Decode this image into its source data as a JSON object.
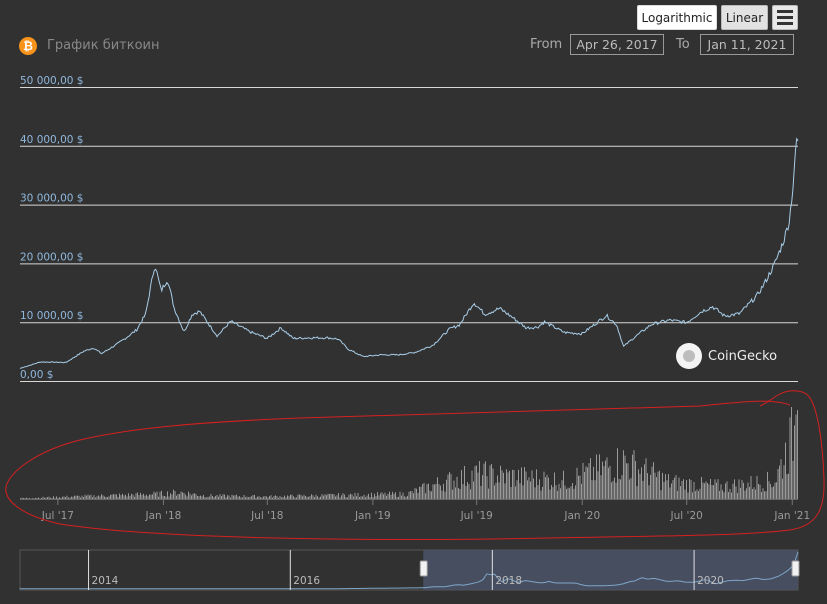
{
  "header": {
    "title": "График биткоин",
    "coin_symbol": "₿",
    "from_label": "From",
    "from_value": "Apr 26, 2017",
    "to_label": "To",
    "to_value": "Jan 11, 2021"
  },
  "buttons": {
    "logarithmic": "Logarithmic",
    "linear": "Linear"
  },
  "watermark": {
    "text": "CoinGecko",
    "icon": "coingecko-gecko-icon"
  },
  "colors": {
    "background": "#313131",
    "price_line": "#a8cde8",
    "volume_bars": "#9a9a9a",
    "annotation": "#d62020",
    "navigator_fill": "#4a5468"
  },
  "chart_data": [
    {
      "type": "line",
      "series": [
        {
          "x": [
            "2017-04-26",
            "2017-06-01",
            "2017-07-15",
            "2017-08-15",
            "2017-09-01",
            "2017-09-15",
            "2017-10-15",
            "2017-11-15",
            "2017-12-01",
            "2017-12-17",
            "2017-12-28",
            "2018-01-08",
            "2018-01-20",
            "2018-02-06",
            "2018-02-20",
            "2018-03-05",
            "2018-04-05",
            "2018-04-28",
            "2018-06-01",
            "2018-07-01",
            "2018-07-25",
            "2018-08-15",
            "2018-09-15",
            "2018-10-15",
            "2018-11-01",
            "2018-11-20",
            "2018-12-15",
            "2019-01-15",
            "2019-02-15",
            "2019-03-15",
            "2019-04-15",
            "2019-05-15",
            "2019-06-01",
            "2019-06-26",
            "2019-07-15",
            "2019-08-10",
            "2019-09-01",
            "2019-09-25",
            "2019-10-15",
            "2019-10-27",
            "2019-12-01",
            "2020-01-01",
            "2020-02-12",
            "2020-03-01",
            "2020-03-13",
            "2020-04-01",
            "2020-05-01",
            "2020-06-01",
            "2020-07-01",
            "2020-07-27",
            "2020-08-15",
            "2020-09-05",
            "2020-10-01",
            "2020-11-01",
            "2020-11-15",
            "2020-12-01",
            "2020-12-17",
            "2020-12-27",
            "2021-01-03",
            "2021-01-08",
            "2021-01-11"
          ],
          "y": [
            1300,
            2400,
            2300,
            4200,
            4800,
            3800,
            5600,
            7800,
            10500,
            19000,
            14500,
            16500,
            11500,
            7500,
            10500,
            11000,
            6800,
            9300,
            7500,
            6400,
            8200,
            6400,
            6500,
            6500,
            6300,
            4500,
            3300,
            3600,
            3600,
            4000,
            5200,
            8000,
            8700,
            12500,
            10500,
            11500,
            10000,
            8200,
            8300,
            9200,
            7400,
            7200,
            10300,
            8700,
            5000,
            6600,
            8800,
            9500,
            9100,
            11000,
            11800,
            10200,
            10600,
            13700,
            16000,
            19000,
            23000,
            26500,
            33000,
            40500,
            40000
          ]
        }
      ],
      "ylim": [
        0,
        50000
      ],
      "yticks": [
        "50 000,00 $",
        "40 000,00 $",
        "30 000,00 $",
        "20 000,00 $",
        "10 000,00 $",
        "0,00 $"
      ],
      "ytick_values": [
        50000,
        40000,
        30000,
        20000,
        10000,
        0
      ],
      "grid": true
    },
    {
      "type": "bar",
      "name": "volume",
      "x_start": "2017-04-26",
      "x_end": "2021-01-11",
      "xticks": [
        "Jul '17",
        "Jan '18",
        "Jul '18",
        "Jan '19",
        "Jul '19",
        "Jan '20",
        "Jul '20",
        "Jan '21"
      ],
      "xtick_dates": [
        "2017-07-01",
        "2018-01-01",
        "2018-07-01",
        "2019-01-01",
        "2019-07-01",
        "2020-01-01",
        "2020-07-01",
        "2021-01-01"
      ],
      "levels": [
        {
          "date": "2017-04-26",
          "value": 1
        },
        {
          "date": "2017-12-20",
          "value": 6
        },
        {
          "date": "2018-01-31",
          "value": 8
        },
        {
          "date": "2018-03-15",
          "value": 4
        },
        {
          "date": "2018-07-01",
          "value": 3
        },
        {
          "date": "2019-03-01",
          "value": 6
        },
        {
          "date": "2019-05-01",
          "value": 20
        },
        {
          "date": "2019-07-01",
          "value": 30
        },
        {
          "date": "2019-12-01",
          "value": 22
        },
        {
          "date": "2020-03-12",
          "value": 45
        },
        {
          "date": "2020-06-01",
          "value": 20
        },
        {
          "date": "2020-09-01",
          "value": 15
        },
        {
          "date": "2020-12-01",
          "value": 22
        },
        {
          "date": "2021-01-11",
          "value": 95
        }
      ]
    },
    {
      "type": "area",
      "name": "navigator",
      "xticks": [
        "2014",
        "2016",
        "2018",
        "2020"
      ],
      "xtick_dates": [
        "2014-01-01",
        "2016-01-01",
        "2018-01-01",
        "2020-01-01"
      ],
      "range": [
        "2013-04-28",
        "2021-01-11"
      ],
      "selected": [
        "2017-04-26",
        "2021-01-11"
      ]
    }
  ]
}
